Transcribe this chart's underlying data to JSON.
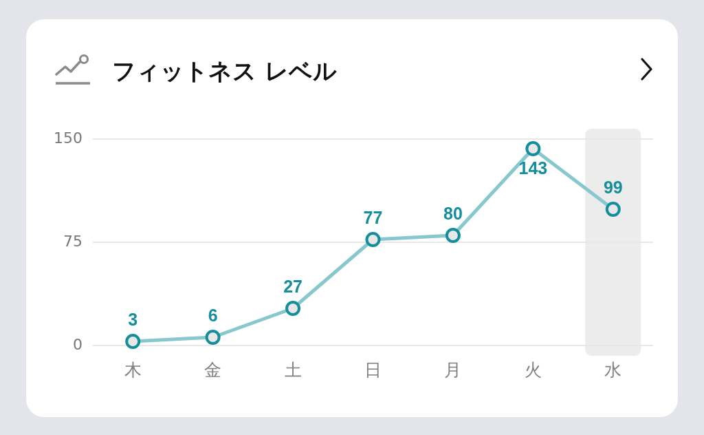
{
  "chart_data": {
    "type": "line",
    "title": "フィットネス レベル",
    "categories": [
      "木",
      "金",
      "土",
      "日",
      "月",
      "火",
      "水"
    ],
    "series": [
      {
        "color": "#86c8cd",
        "colors": [
          "#138e9a",
          "#138e9a",
          "#138e9a",
          "#138e9a",
          "#138e9a",
          "#138e9a",
          "#138e9a"
        ],
        "values": [
          3,
          6,
          27,
          77,
          80,
          143,
          99
        ]
      }
    ],
    "ylim": [
      0,
      150
    ],
    "yticks": [
      0,
      75,
      150
    ],
    "grid": "y",
    "marker": "circle",
    "line_style": "solid",
    "data_labels": true,
    "bands": [
      {
        "axis": "x",
        "from": "水",
        "to": "水",
        "color": "#ececec"
      }
    ]
  }
}
